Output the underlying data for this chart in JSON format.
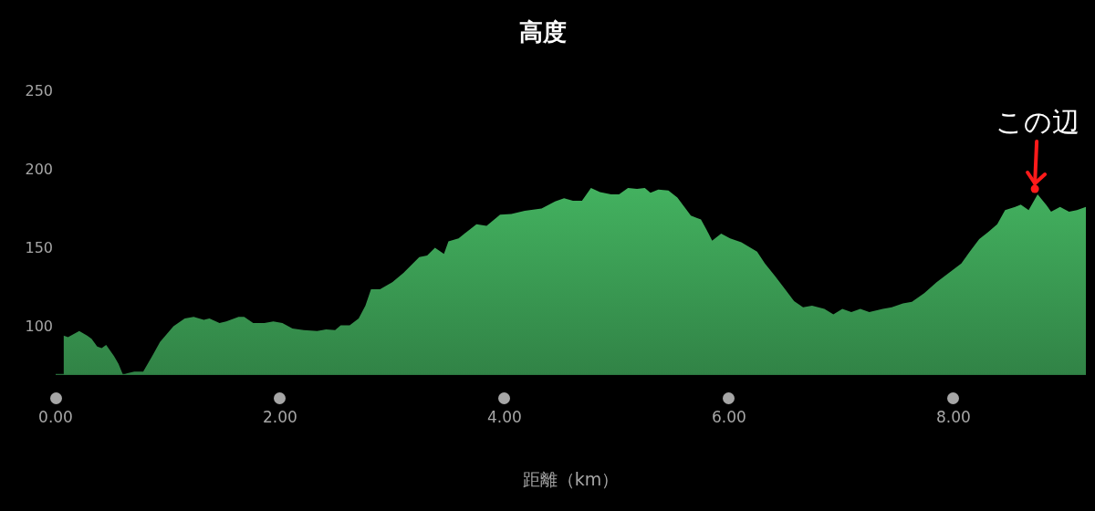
{
  "chart_data": {
    "type": "area",
    "title": "高度",
    "xlabel": "距離（km）",
    "x": [
      0.07,
      0.11,
      0.21,
      0.28,
      0.32,
      0.37,
      0.41,
      0.45,
      0.52,
      0.56,
      0.6,
      0.64,
      0.7,
      0.78,
      0.86,
      0.93,
      1.05,
      1.15,
      1.23,
      1.32,
      1.37,
      1.46,
      1.52,
      1.63,
      1.68,
      1.76,
      1.86,
      1.94,
      2.02,
      2.11,
      2.21,
      2.33,
      2.41,
      2.49,
      2.54,
      2.62,
      2.7,
      2.76,
      2.81,
      2.89,
      3.0,
      3.1,
      3.24,
      3.31,
      3.38,
      3.46,
      3.5,
      3.59,
      3.75,
      3.84,
      3.96,
      4.06,
      4.18,
      4.33,
      4.45,
      4.53,
      4.61,
      4.69,
      4.77,
      4.85,
      4.95,
      5.02,
      5.1,
      5.18,
      5.25,
      5.3,
      5.37,
      5.46,
      5.54,
      5.66,
      5.75,
      5.8,
      5.85,
      5.93,
      6.01,
      6.11,
      6.25,
      6.32,
      6.41,
      6.5,
      6.58,
      6.66,
      6.74,
      6.85,
      6.93,
      7.01,
      7.09,
      7.17,
      7.25,
      7.37,
      7.45,
      7.55,
      7.63,
      7.74,
      7.85,
      7.96,
      8.07,
      8.15,
      8.23,
      8.31,
      8.39,
      8.46,
      8.55,
      8.6,
      8.67,
      8.75,
      8.83,
      8.87,
      8.95,
      9.03,
      9.1,
      9.18
    ],
    "series": [
      {
        "color": "#4cc96c",
        "values": [
          95,
          94,
          98,
          95,
          93,
          88,
          87,
          89,
          82,
          77,
          70,
          71,
          72,
          72,
          82,
          91,
          101,
          106,
          107,
          105,
          106,
          103,
          104,
          107,
          107,
          103,
          103,
          104,
          103,
          99.5,
          98.5,
          98,
          99,
          98.5,
          101.5,
          101.5,
          106,
          114,
          124.5,
          124.5,
          129,
          135,
          145,
          146,
          151,
          147,
          155,
          157,
          166,
          165,
          172,
          172.5,
          174.5,
          176,
          180.5,
          182.5,
          181,
          181,
          189,
          186.5,
          185,
          185,
          189,
          188.5,
          189,
          186,
          188,
          187.5,
          183,
          171.5,
          169,
          162.5,
          155.5,
          160,
          157,
          154.5,
          148.5,
          141,
          133,
          124.5,
          117,
          113,
          114,
          112,
          108.5,
          112,
          110,
          112,
          110,
          112,
          113,
          115.5,
          116.5,
          122,
          129,
          135,
          141,
          149,
          156.5,
          161,
          166,
          175,
          177,
          178.5,
          175,
          185,
          178,
          174,
          177,
          174,
          175,
          177
        ]
      }
    ],
    "xlim": [
      0,
      9.18
    ],
    "ylim": [
      70,
      250
    ],
    "xticks": [
      {
        "value": 0,
        "label": "0.00"
      },
      {
        "value": 2,
        "label": "2.00"
      },
      {
        "value": 4,
        "label": "4.00"
      },
      {
        "value": 6,
        "label": "6.00"
      },
      {
        "value": 8,
        "label": "8.00"
      }
    ],
    "yticks": [
      100,
      150,
      200,
      250
    ],
    "grid": false,
    "legend": false,
    "annotations": [
      {
        "text": "この辺",
        "x": 8.75,
        "y": 185
      }
    ]
  }
}
